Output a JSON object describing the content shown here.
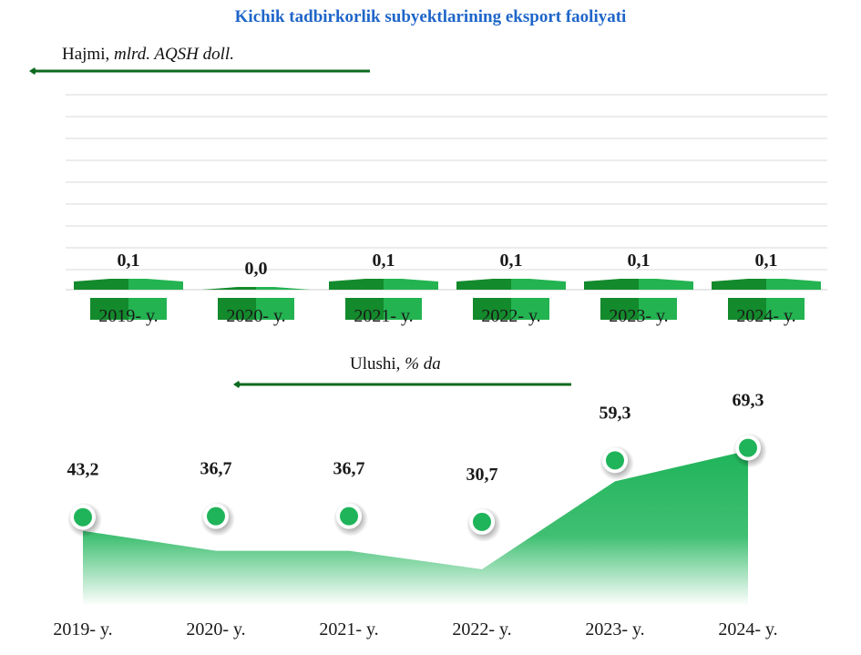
{
  "title": "Kichik tadbirkorlik subyektlarining eksport faoliyati",
  "colors": {
    "title": "#1f66c9",
    "bar_dark": "#138a2c",
    "bar_light": "#23b351",
    "area": "#1fb45a",
    "arrow": "#0c6a1e",
    "grid": "#d9d9d9"
  },
  "chart_data": [
    {
      "type": "bar",
      "subtitle_prefix": "Hajmi, ",
      "subtitle_unit": "mlrd. AQSH doll.",
      "categories": [
        "2019- y.",
        "2020- y.",
        "2021- y.",
        "2022- y.",
        "2023- y.",
        "2024- y."
      ],
      "values": [
        0.1,
        0.0,
        0.1,
        0.1,
        0.1,
        0.1
      ],
      "labels": [
        "0,1",
        "0,0",
        "0,1",
        "0,1",
        "0,1",
        "0,1"
      ],
      "grid": true
    },
    {
      "type": "area",
      "subtitle_prefix": "Ulushi, ",
      "subtitle_unit": "% da",
      "categories": [
        "2019- y.",
        "2020- y.",
        "2021- y.",
        "2022- y.",
        "2023- y.",
        "2024- y."
      ],
      "values": [
        43.2,
        36.7,
        36.7,
        30.7,
        59.3,
        69.3
      ],
      "labels": [
        "43,2",
        "36,7",
        "36,7",
        "30,7",
        "59,3",
        "69,3"
      ],
      "grid": false
    }
  ]
}
